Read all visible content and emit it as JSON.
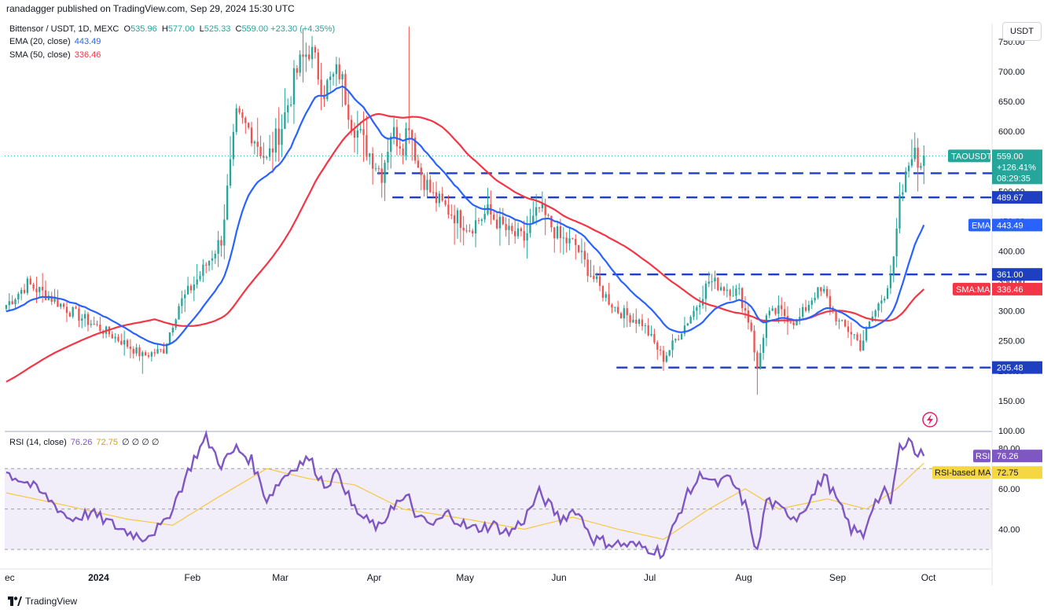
{
  "header": {
    "published": "ranadagger published on TradingView.com, Sep 29, 2024 15:30 UTC"
  },
  "legend": {
    "symbol": "Bittensor / USDT, 1D, MEXC",
    "o_label": "O",
    "o": "535.96",
    "h_label": "H",
    "h": "577.00",
    "l_label": "L",
    "l": "525.33",
    "c_label": "C",
    "c": "559.00",
    "chg": "+23.30 (+4.35%)",
    "ema_label": "EMA (20, close)",
    "ema_value": "443.49",
    "sma_label": "SMA (50, close)",
    "sma_value": "336.46",
    "rsi_label": "RSI (14, close)",
    "rsi_value": "76.26",
    "rsi_ma_value": "72.75",
    "rsi_extra": "∅ ∅ ∅ ∅"
  },
  "currency": "USDT",
  "footer": {
    "brand": "TradingView",
    "logo_icon": "tradingview-logo-icon"
  },
  "colors": {
    "up": "#26a69a",
    "down": "#ef5350",
    "ema": "#2962ff",
    "sma": "#f23645",
    "rsi": "#7e57c2",
    "rsi_ma": "#f5c842",
    "level": "#1e3fbf"
  },
  "chart_data": [
    {
      "type": "candlestick",
      "ylim": [
        100,
        780
      ],
      "yticks": [
        100,
        150,
        200,
        250,
        300,
        350,
        400,
        450,
        500,
        550,
        600,
        650,
        700,
        750
      ],
      "ytick_labels": [
        "100.00",
        "150.00",
        "200.00",
        "250.00",
        "300.00",
        "350.00",
        "400.00",
        "450.00",
        "500.00",
        "550.00",
        "600.00",
        "650.00",
        "700.00",
        "750.00"
      ],
      "x_start": "2023-12-01",
      "x_end": "2024-10-22",
      "x_ticks": [
        {
          "date": "2023-12-01",
          "label": "ec"
        },
        {
          "date": "2024-01-01",
          "label": "2024"
        },
        {
          "date": "2024-02-01",
          "label": "Feb"
        },
        {
          "date": "2024-03-01",
          "label": "Mar"
        },
        {
          "date": "2024-04-01",
          "label": "Apr"
        },
        {
          "date": "2024-05-01",
          "label": "May"
        },
        {
          "date": "2024-06-01",
          "label": "Jun"
        },
        {
          "date": "2024-07-01",
          "label": "Jul"
        },
        {
          "date": "2024-08-01",
          "label": "Aug"
        },
        {
          "date": "2024-09-01",
          "label": "Sep"
        },
        {
          "date": "2024-10-01",
          "label": "Oct"
        }
      ],
      "close_anchors": [
        [
          "2023-12-01",
          310
        ],
        [
          "2023-12-08",
          345
        ],
        [
          "2023-12-15",
          325
        ],
        [
          "2023-12-22",
          300
        ],
        [
          "2023-12-29",
          280
        ],
        [
          "2024-01-08",
          250
        ],
        [
          "2024-01-15",
          225
        ],
        [
          "2024-01-22",
          235
        ],
        [
          "2024-01-27",
          310
        ],
        [
          "2024-02-03",
          360
        ],
        [
          "2024-02-10",
          420
        ],
        [
          "2024-02-15",
          620
        ],
        [
          "2024-02-20",
          600
        ],
        [
          "2024-02-25",
          550
        ],
        [
          "2024-03-01",
          610
        ],
        [
          "2024-03-06",
          700
        ],
        [
          "2024-03-10",
          740
        ],
        [
          "2024-03-15",
          670
        ],
        [
          "2024-03-20",
          700
        ],
        [
          "2024-03-24",
          620
        ],
        [
          "2024-03-28",
          580
        ],
        [
          "2024-04-03",
          530
        ],
        [
          "2024-04-06",
          600
        ],
        [
          "2024-04-10",
          580
        ],
        [
          "2024-04-12",
          620
        ],
        [
          "2024-04-15",
          540
        ],
        [
          "2024-04-20",
          490
        ],
        [
          "2024-04-27",
          460
        ],
        [
          "2024-05-02",
          440
        ],
        [
          "2024-05-08",
          465
        ],
        [
          "2024-05-15",
          430
        ],
        [
          "2024-05-20",
          420
        ],
        [
          "2024-05-25",
          470
        ],
        [
          "2024-06-01",
          420
        ],
        [
          "2024-06-06",
          410
        ],
        [
          "2024-06-10",
          370
        ],
        [
          "2024-06-15",
          330
        ],
        [
          "2024-06-20",
          300
        ],
        [
          "2024-06-28",
          280
        ],
        [
          "2024-07-05",
          220
        ],
        [
          "2024-07-10",
          260
        ],
        [
          "2024-07-15",
          300
        ],
        [
          "2024-07-20",
          350
        ],
        [
          "2024-07-25",
          340
        ],
        [
          "2024-07-30",
          330
        ],
        [
          "2024-08-03",
          270
        ],
        [
          "2024-08-05",
          200
        ],
        [
          "2024-08-08",
          290
        ],
        [
          "2024-08-12",
          300
        ],
        [
          "2024-08-18",
          280
        ],
        [
          "2024-08-24",
          330
        ],
        [
          "2024-08-27",
          330
        ],
        [
          "2024-09-01",
          280
        ],
        [
          "2024-09-06",
          260
        ],
        [
          "2024-09-08",
          240
        ],
        [
          "2024-09-12",
          290
        ],
        [
          "2024-09-16",
          330
        ],
        [
          "2024-09-19",
          380
        ],
        [
          "2024-09-21",
          480
        ],
        [
          "2024-09-23",
          520
        ],
        [
          "2024-09-25",
          570
        ],
        [
          "2024-09-27",
          545
        ],
        [
          "2024-09-29",
          559
        ]
      ],
      "ema": {
        "name": "EMA",
        "last": 443.49
      },
      "sma": {
        "name": "SMA:MA",
        "last": 336.46
      },
      "levels": [
        {
          "value": 530.0,
          "label": "530.00",
          "from": "2024-04-02"
        },
        {
          "value": 489.67,
          "label": "489.67",
          "from": "2024-04-07"
        },
        {
          "value": 361.0,
          "label": "361.00",
          "from": "2024-06-13"
        },
        {
          "value": 205.48,
          "label": "205.48",
          "from": "2024-06-20"
        }
      ],
      "price_tags": [
        {
          "label": "TAOUSDT",
          "value": "559.00",
          "change": "+126.41%",
          "timer": "08:29:35",
          "price": 559.0
        },
        {
          "label": "EMA",
          "value": "443.49",
          "price": 443.49
        },
        {
          "label": "SMA:MA",
          "value": "336.46",
          "price": 336.46
        }
      ]
    },
    {
      "type": "line",
      "name": "RSI",
      "ylim": [
        25,
        88
      ],
      "yticks": [
        40,
        60,
        80
      ],
      "ytick_labels": [
        "40.00",
        "60.00",
        "80.00"
      ],
      "band": [
        30,
        70
      ],
      "mid": 50,
      "anchors": [
        [
          "2023-12-01",
          68
        ],
        [
          "2023-12-08",
          63
        ],
        [
          "2023-12-15",
          55
        ],
        [
          "2023-12-22",
          45
        ],
        [
          "2023-12-29",
          48
        ],
        [
          "2024-01-08",
          40
        ],
        [
          "2024-01-15",
          36
        ],
        [
          "2024-01-22",
          42
        ],
        [
          "2024-01-27",
          58
        ],
        [
          "2024-02-01",
          75
        ],
        [
          "2024-02-05",
          85
        ],
        [
          "2024-02-10",
          72
        ],
        [
          "2024-02-15",
          80
        ],
        [
          "2024-02-20",
          74
        ],
        [
          "2024-02-25",
          55
        ],
        [
          "2024-03-01",
          65
        ],
        [
          "2024-03-06",
          72
        ],
        [
          "2024-03-10",
          75
        ],
        [
          "2024-03-15",
          62
        ],
        [
          "2024-03-20",
          68
        ],
        [
          "2024-03-24",
          52
        ],
        [
          "2024-03-28",
          45
        ],
        [
          "2024-04-03",
          40
        ],
        [
          "2024-04-06",
          52
        ],
        [
          "2024-04-12",
          55
        ],
        [
          "2024-04-15",
          45
        ],
        [
          "2024-04-20",
          42
        ],
        [
          "2024-04-25",
          48
        ],
        [
          "2024-05-02",
          40
        ],
        [
          "2024-05-10",
          42
        ],
        [
          "2024-05-15",
          38
        ],
        [
          "2024-05-20",
          45
        ],
        [
          "2024-05-25",
          58
        ],
        [
          "2024-06-01",
          45
        ],
        [
          "2024-06-06",
          50
        ],
        [
          "2024-06-12",
          35
        ],
        [
          "2024-06-18",
          33
        ],
        [
          "2024-06-25",
          32
        ],
        [
          "2024-07-02",
          30
        ],
        [
          "2024-07-05",
          28
        ],
        [
          "2024-07-12",
          55
        ],
        [
          "2024-07-18",
          68
        ],
        [
          "2024-07-22",
          62
        ],
        [
          "2024-07-27",
          65
        ],
        [
          "2024-08-01",
          52
        ],
        [
          "2024-08-05",
          28
        ],
        [
          "2024-08-08",
          55
        ],
        [
          "2024-08-12",
          50
        ],
        [
          "2024-08-18",
          46
        ],
        [
          "2024-08-24",
          58
        ],
        [
          "2024-08-27",
          67
        ],
        [
          "2024-09-01",
          52
        ],
        [
          "2024-09-05",
          40
        ],
        [
          "2024-09-09",
          37
        ],
        [
          "2024-09-12",
          52
        ],
        [
          "2024-09-16",
          58
        ],
        [
          "2024-09-18",
          53
        ],
        [
          "2024-09-21",
          80
        ],
        [
          "2024-09-24",
          86
        ],
        [
          "2024-09-26",
          78
        ],
        [
          "2024-09-29",
          76.26
        ]
      ],
      "rsi_ma_anchors": [
        [
          "2023-12-01",
          58
        ],
        [
          "2023-12-20",
          52
        ],
        [
          "2024-01-10",
          45
        ],
        [
          "2024-01-25",
          42
        ],
        [
          "2024-02-08",
          55
        ],
        [
          "2024-02-25",
          70
        ],
        [
          "2024-03-10",
          65
        ],
        [
          "2024-03-25",
          62
        ],
        [
          "2024-04-10",
          50
        ],
        [
          "2024-05-01",
          45
        ],
        [
          "2024-05-20",
          40
        ],
        [
          "2024-06-05",
          46
        ],
        [
          "2024-06-20",
          40
        ],
        [
          "2024-07-05",
          35
        ],
        [
          "2024-07-20",
          50
        ],
        [
          "2024-08-01",
          60
        ],
        [
          "2024-08-12",
          50
        ],
        [
          "2024-08-28",
          55
        ],
        [
          "2024-09-10",
          50
        ],
        [
          "2024-09-20",
          60
        ],
        [
          "2024-09-29",
          72.75
        ]
      ],
      "tags": [
        {
          "label": "RSI",
          "value": "76.26",
          "price": 76.26
        },
        {
          "label": "RSI-based MA",
          "value": "72.75",
          "price": 72.75
        }
      ]
    }
  ]
}
